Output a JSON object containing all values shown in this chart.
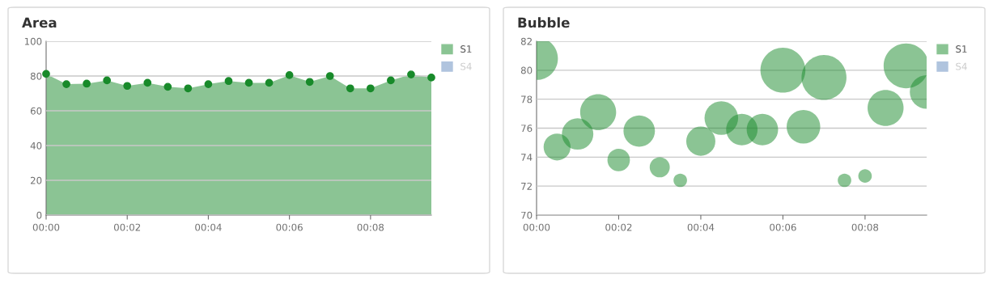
{
  "chart_data": [
    {
      "type": "area",
      "title": "Area",
      "x": [
        0,
        0.5,
        1,
        1.5,
        2,
        2.5,
        3,
        3.5,
        4,
        4.5,
        5,
        5.5,
        6,
        6.5,
        7,
        7.5,
        8,
        8.5,
        9,
        9.5
      ],
      "series": [
        {
          "name": "S1",
          "color": "#188a2a",
          "values": [
            81.2,
            75.3,
            75.6,
            77.5,
            74.3,
            76.1,
            73.8,
            72.9,
            75.3,
            77.1,
            76.1,
            76.1,
            80.5,
            76.6,
            80.0,
            72.9,
            72.9,
            77.5,
            80.9,
            79.1
          ]
        },
        {
          "name": "S4",
          "color": "#b0c4de",
          "values": [
            null,
            null,
            null,
            null,
            null,
            null,
            null,
            null,
            null,
            null,
            null,
            null,
            null,
            null,
            null,
            null,
            null,
            null,
            null,
            null
          ]
        }
      ],
      "xlim": [
        0,
        9.5
      ],
      "xticks": [
        {
          "value": 0,
          "label": "00:00"
        },
        {
          "value": 2,
          "label": "00:02"
        },
        {
          "value": 4,
          "label": "00:04"
        },
        {
          "value": 6,
          "label": "00:06"
        },
        {
          "value": 8,
          "label": "00:08"
        }
      ],
      "ylim": [
        0,
        100
      ],
      "yticks": [
        0,
        20,
        40,
        60,
        80,
        100
      ],
      "grid": "y",
      "legend": "right",
      "marker": "circle"
    },
    {
      "type": "bubble",
      "title": "Bubble",
      "x": [
        0,
        0.5,
        1,
        1.5,
        2,
        2.5,
        3,
        3.5,
        4,
        4.5,
        5,
        5.5,
        6,
        6.5,
        7,
        7.5,
        8,
        8.5,
        9,
        9.5
      ],
      "series": [
        {
          "name": "S1",
          "color": "#188a2a",
          "values": [
            80.8,
            74.7,
            75.6,
            77.1,
            73.8,
            75.8,
            73.3,
            72.4,
            75.1,
            76.7,
            75.9,
            75.9,
            80.0,
            76.1,
            79.5,
            72.4,
            72.7,
            77.4,
            80.3,
            78.5
          ],
          "sizes": [
            0.9,
            0.36,
            0.49,
            0.64,
            0.25,
            0.49,
            0.2,
            0.09,
            0.42,
            0.56,
            0.49,
            0.49,
            1,
            0.56,
            1,
            0.09,
            0.09,
            0.64,
            1,
            0.56
          ]
        },
        {
          "name": "S4",
          "color": "#b0c4de",
          "values": [
            null,
            null,
            null,
            null,
            null,
            null,
            null,
            null,
            null,
            null,
            null,
            null,
            null,
            null,
            null,
            null,
            null,
            null,
            null,
            null
          ]
        }
      ],
      "xlim": [
        0,
        9.5
      ],
      "xticks": [
        {
          "value": 0,
          "label": "00:00"
        },
        {
          "value": 2,
          "label": "00:02"
        },
        {
          "value": 4,
          "label": "00:04"
        },
        {
          "value": 6,
          "label": "00:06"
        },
        {
          "value": 8,
          "label": "00:08"
        }
      ],
      "ylim": [
        70,
        82
      ],
      "yticks": [
        70,
        72,
        74,
        76,
        78,
        80,
        82
      ],
      "grid": "y",
      "legend": "right"
    }
  ]
}
